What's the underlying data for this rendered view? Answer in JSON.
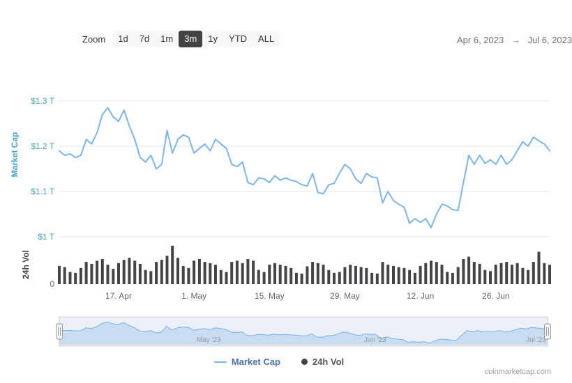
{
  "toolbar": {
    "zoom_label": "Zoom",
    "buttons": [
      {
        "label": "1d",
        "selected": false
      },
      {
        "label": "7d",
        "selected": false
      },
      {
        "label": "1m",
        "selected": false
      },
      {
        "label": "3m",
        "selected": true
      },
      {
        "label": "1y",
        "selected": false
      },
      {
        "label": "YTD",
        "selected": false
      },
      {
        "label": "ALL",
        "selected": false
      }
    ],
    "range_start": "Apr 6, 2023",
    "range_arrow": "→",
    "range_end": "Jul 6, 2023"
  },
  "watermark": "coinmarketcap.com",
  "legend": [
    {
      "label": "Market Cap",
      "marker": "line",
      "color": "#7cb5ec",
      "label_color": "#4a72b0"
    },
    {
      "label": "24h Vol",
      "marker": "circle",
      "color": "#434348",
      "label_color": "#55565b"
    }
  ],
  "chart_data": {
    "type": "line",
    "title": "",
    "start_date": "2023-04-06",
    "end_date": "2023-07-06",
    "y_axis_market_cap": {
      "label": "Market Cap",
      "color": "#45a2c2",
      "ticks": [
        "$1 T",
        "$1.1 T",
        "$1.2 T",
        "$1.3 T"
      ],
      "tick_values": [
        1.0,
        1.1,
        1.2,
        1.3
      ],
      "unit": "trillion USD",
      "ylim": [
        1.0,
        1.32
      ]
    },
    "y_axis_volume": {
      "label": "24h Vol",
      "color": "#434348",
      "tick_color": "#66686c",
      "ticks": [
        "0"
      ],
      "unit": "billion USD",
      "ylim": [
        0,
        100
      ]
    },
    "x_ticks": [
      "17. Apr",
      "1. May",
      "15. May",
      "29. May",
      "12. Jun",
      "26. Jun"
    ],
    "x_tick_indices": [
      11,
      25,
      39,
      53,
      67,
      81
    ],
    "navigator_labels": [
      "May '23",
      "Jun '23",
      "Jul '23"
    ],
    "navigator_label_indices": [
      25,
      56,
      86
    ],
    "grid": true,
    "legend_position": "bottom-center",
    "series": [
      {
        "name": "Market Cap",
        "type": "line",
        "color": "#7cb5ec",
        "unit": "T",
        "values": [
          1.19,
          1.18,
          1.183,
          1.175,
          1.18,
          1.215,
          1.205,
          1.23,
          1.27,
          1.285,
          1.265,
          1.255,
          1.28,
          1.245,
          1.215,
          1.175,
          1.165,
          1.18,
          1.15,
          1.16,
          1.235,
          1.185,
          1.215,
          1.225,
          1.22,
          1.185,
          1.195,
          1.205,
          1.19,
          1.215,
          1.205,
          1.195,
          1.16,
          1.155,
          1.165,
          1.12,
          1.115,
          1.13,
          1.128,
          1.12,
          1.135,
          1.125,
          1.13,
          1.125,
          1.122,
          1.115,
          1.112,
          1.14,
          1.098,
          1.095,
          1.115,
          1.118,
          1.14,
          1.16,
          1.15,
          1.128,
          1.118,
          1.14,
          1.132,
          1.13,
          1.075,
          1.1,
          1.08,
          1.072,
          1.065,
          1.03,
          1.04,
          1.032,
          1.04,
          1.02,
          1.05,
          1.072,
          1.068,
          1.06,
          1.058,
          1.12,
          1.18,
          1.16,
          1.18,
          1.162,
          1.17,
          1.16,
          1.18,
          1.16,
          1.17,
          1.19,
          1.21,
          1.2,
          1.22,
          1.212,
          1.205,
          1.19
        ]
      },
      {
        "name": "24h Vol",
        "type": "column",
        "color": "#434348",
        "unit": "B",
        "values": [
          45,
          42,
          30,
          28,
          40,
          55,
          50,
          58,
          62,
          48,
          38,
          52,
          60,
          65,
          58,
          50,
          35,
          32,
          55,
          60,
          70,
          95,
          65,
          45,
          40,
          58,
          62,
          55,
          52,
          48,
          35,
          30,
          55,
          58,
          52,
          62,
          58,
          35,
          30,
          48,
          52,
          48,
          45,
          40,
          28,
          26,
          44,
          55,
          52,
          48,
          35,
          28,
          30,
          42,
          48,
          45,
          42,
          40,
          28,
          26,
          55,
          48,
          45,
          42,
          40,
          35,
          28,
          45,
          52,
          58,
          55,
          48,
          30,
          28,
          42,
          62,
          68,
          55,
          50,
          35,
          32,
          48,
          52,
          55,
          48,
          52,
          40,
          35,
          55,
          80,
          52,
          48
        ]
      }
    ]
  }
}
